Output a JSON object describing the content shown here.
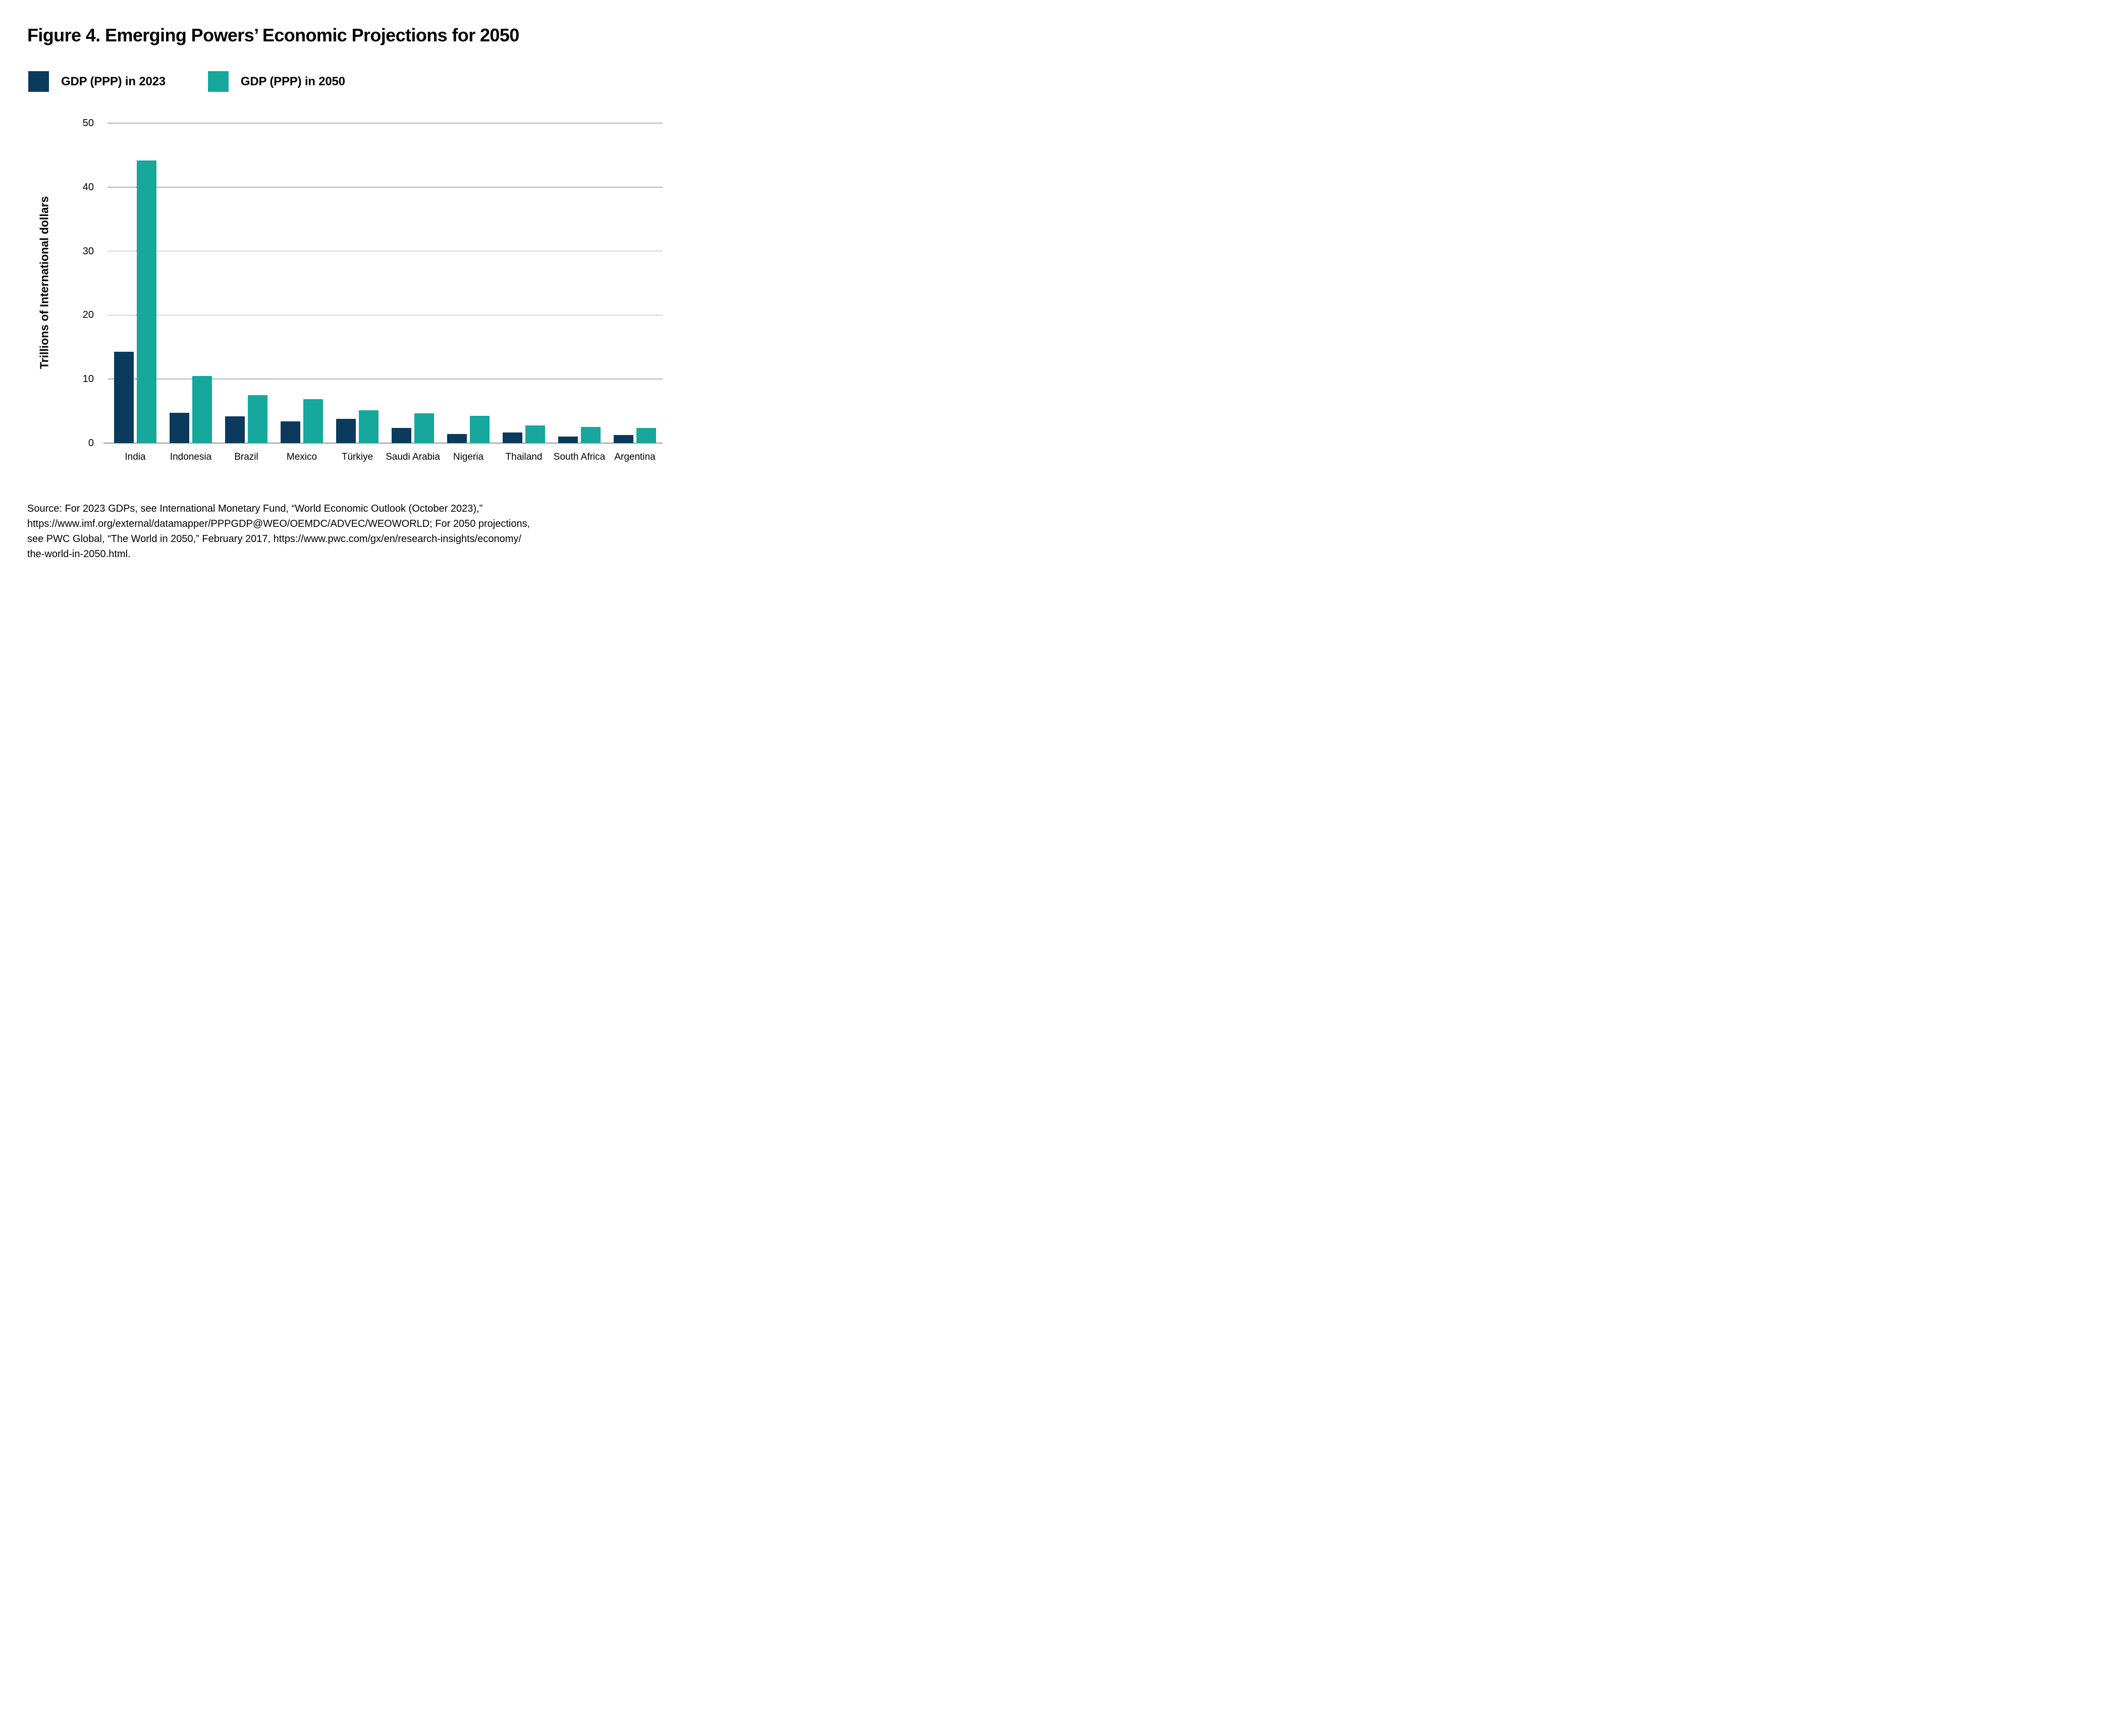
{
  "figure": {
    "title": "Figure 4. Emerging Powers’ Economic Projections for 2050"
  },
  "legend": {
    "items": [
      {
        "label": "GDP (PPP) in 2023",
        "color": "#0b3a5c"
      },
      {
        "label": "GDP (PPP) in 2050",
        "color": "#16a79d"
      }
    ]
  },
  "chart_data": {
    "type": "bar",
    "title": "Figure 4. Emerging Powers’ Economic Projections for 2050",
    "categories": [
      "India",
      "Indonesia",
      "Brazil",
      "Mexico",
      "Türkiye",
      "Saudi Arabia",
      "Nigeria",
      "Thailand",
      "South Africa",
      "Argentina"
    ],
    "series": [
      {
        "name": "GDP (PPP) in 2023",
        "color": "#0b3a5c",
        "values": [
          14.25,
          4.7,
          4.2,
          3.4,
          3.8,
          2.35,
          1.45,
          1.65,
          1.0,
          1.3
        ]
      },
      {
        "name": "GDP (PPP) in 2050",
        "color": "#16a79d",
        "values": [
          44.15,
          10.5,
          7.5,
          6.85,
          5.15,
          4.65,
          4.3,
          2.75,
          2.55,
          2.35
        ]
      }
    ],
    "xlabel": "",
    "ylabel": "Trillions of International dollars",
    "yticks": [
      0,
      10,
      20,
      30,
      40,
      50
    ],
    "ylim": [
      0,
      50
    ],
    "grid": true,
    "legend_position": "top-left"
  },
  "source": {
    "lines": [
      "Source: For 2023 GDPs, see International Monetary Fund, “World Economic Outlook (October 2023),”",
      "https://www.imf.org/external/datamapper/PPPGDP@WEO/OEMDC/ADVEC/WEOWORLD; For 2050 projections,",
      "see PWC Global, “The World in 2050,” February 2017, https://www.pwc.com/gx/en/research-insights/economy/",
      "the-world-in-2050.html."
    ]
  },
  "colors": {
    "gridline": "#b5b5b5",
    "axis": "#9b9b9b",
    "text": "#000000",
    "background": "#ffffff"
  }
}
